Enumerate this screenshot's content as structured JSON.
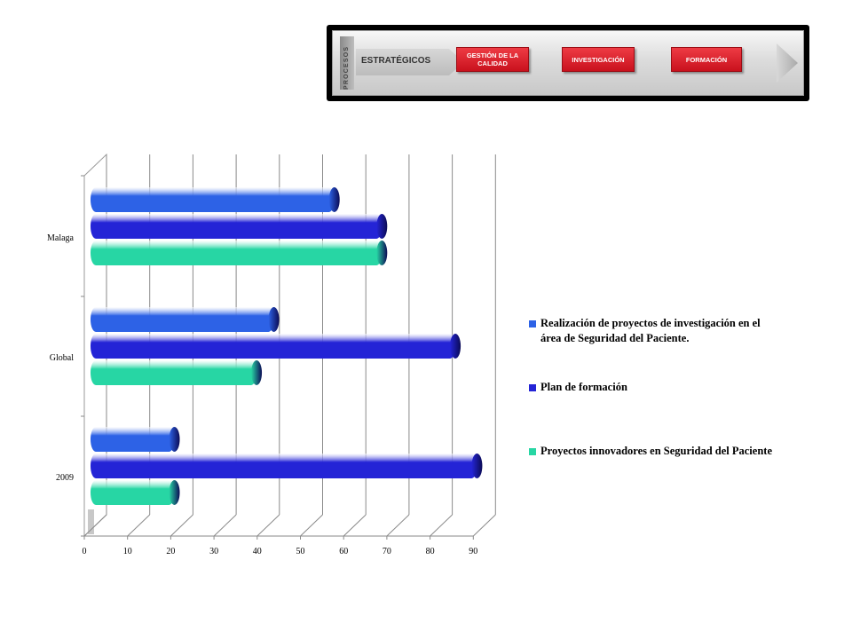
{
  "banner": {
    "vertical_label": "PROCESOS",
    "tag_label": "ESTRATÉGICOS",
    "buttons": [
      {
        "label": "GESTIÓN DE LA CALIDAD"
      },
      {
        "label": "INVESTIGACIÓN"
      },
      {
        "label": "FORMACIÓN"
      }
    ]
  },
  "chart_data": {
    "type": "bar",
    "orientation": "horizontal",
    "style": "3d-cylinder",
    "categories": [
      "Malaga",
      "Global",
      "2009"
    ],
    "series": [
      {
        "name": "Realización de proyectos de investigación en el área de Seguridad del Paciente.",
        "color": "#2d62e6",
        "values": [
          56,
          42,
          19
        ]
      },
      {
        "name": "Plan de formación",
        "color": "#2424d6",
        "values": [
          67,
          84,
          89
        ]
      },
      {
        "name": "Proyectos innovadores en Seguridad del Paciente",
        "color": "#27d6a4",
        "values": [
          67,
          38,
          19
        ]
      }
    ],
    "xlim": [
      0,
      90
    ],
    "xticks": [
      "0",
      "10",
      "20",
      "30",
      "40",
      "50",
      "60",
      "70",
      "80",
      "90"
    ],
    "grid": true,
    "legend_position": "right",
    "title": "",
    "xlabel": "",
    "ylabel": ""
  },
  "legend": {
    "items": [
      {
        "label": "Realización de proyectos de investigación en el área de Seguridad del Paciente.",
        "color": "#2d62e6"
      },
      {
        "label": "Plan de formación",
        "color": "#2424d6"
      },
      {
        "label": "Proyectos innovadores en Seguridad del Paciente",
        "color": "#27d6a4"
      }
    ]
  }
}
